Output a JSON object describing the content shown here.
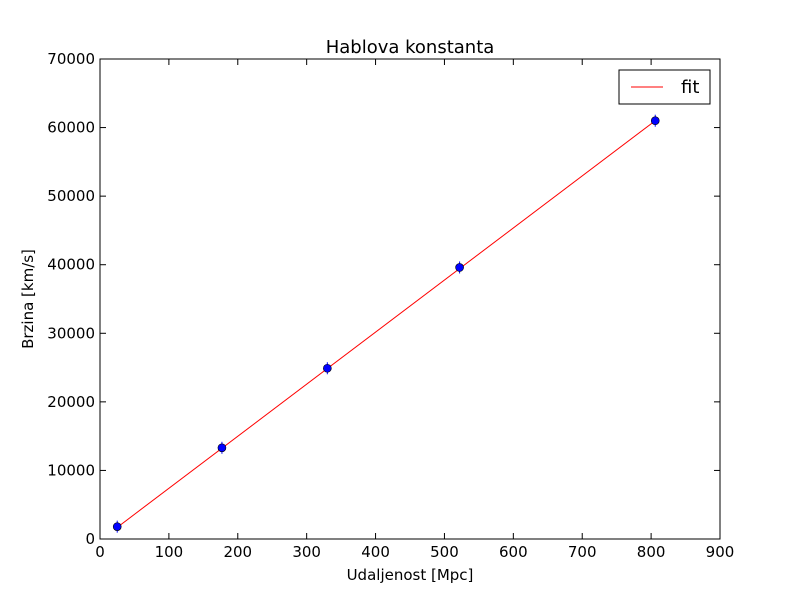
{
  "chart_data": {
    "type": "scatter",
    "title": "Hablova konstanta",
    "xlabel": "Udaljenost [Mpc]",
    "ylabel": "Brzina [km/s]",
    "xlim": [
      0,
      900
    ],
    "ylim": [
      0,
      70000
    ],
    "xticks": [
      0,
      100,
      200,
      300,
      400,
      500,
      600,
      700,
      800,
      900
    ],
    "yticks": [
      0,
      10000,
      20000,
      30000,
      40000,
      50000,
      60000,
      70000
    ],
    "grid": false,
    "legend_position": "top-right",
    "series": [
      {
        "kind": "points",
        "color": "#0000ff",
        "x": [
          25,
          177,
          330,
          522,
          806
        ],
        "y": [
          1800,
          13300,
          24900,
          39600,
          61000
        ]
      },
      {
        "kind": "line",
        "name": "fit",
        "color": "#ff0000",
        "x": [
          25,
          806
        ],
        "y": [
          1700,
          61000
        ]
      }
    ]
  }
}
